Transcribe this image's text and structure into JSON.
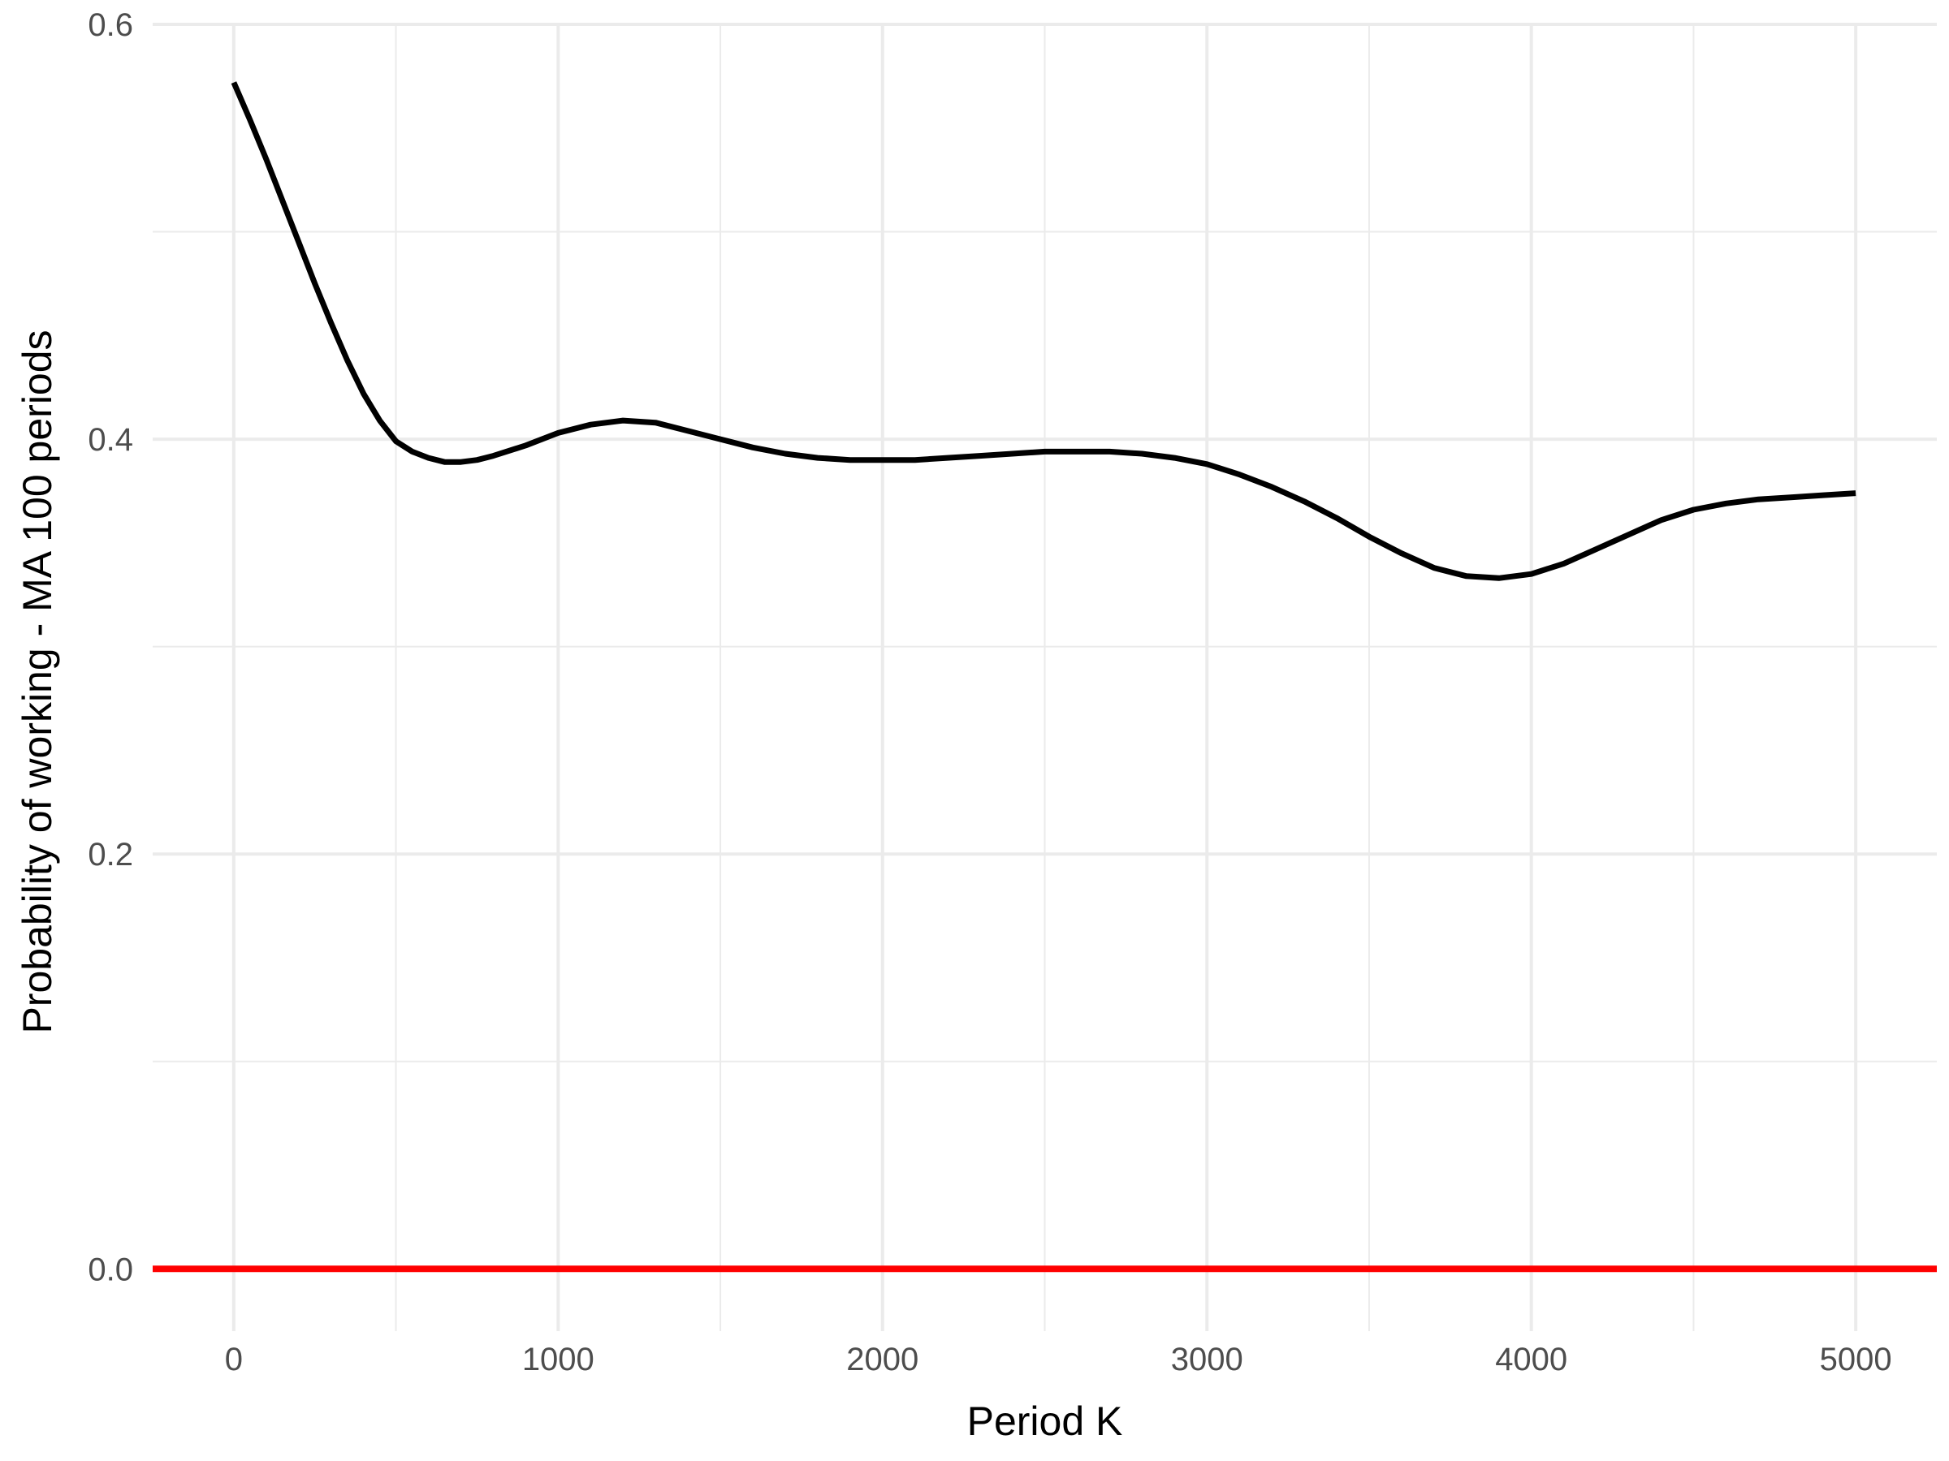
{
  "chart_data": {
    "type": "line",
    "title": "",
    "xlabel": "Period K",
    "ylabel": "Probability of working - MA 100 periods",
    "xlim": [
      -250,
      5250
    ],
    "ylim": [
      -0.03,
      0.6
    ],
    "x_ticks": [
      0,
      1000,
      2000,
      3000,
      4000,
      5000
    ],
    "x_tick_labels": [
      "0",
      "1000",
      "2000",
      "3000",
      "4000",
      "5000"
    ],
    "x_minor_ticks": [
      500,
      1500,
      2500,
      3500,
      4500
    ],
    "y_ticks": [
      0.0,
      0.2,
      0.4,
      0.6
    ],
    "y_tick_labels": [
      "0.0",
      "0.2",
      "0.4",
      "0.6"
    ],
    "y_minor_ticks": [
      0.1,
      0.3,
      0.5
    ],
    "grid": true,
    "legend": "none",
    "series": [
      {
        "color": "#000000",
        "x": [
          0,
          50,
          100,
          150,
          200,
          250,
          300,
          350,
          400,
          450,
          500,
          550,
          600,
          650,
          700,
          750,
          800,
          900,
          1000,
          1100,
          1200,
          1300,
          1400,
          1500,
          1600,
          1700,
          1800,
          1900,
          2000,
          2100,
          2200,
          2300,
          2400,
          2500,
          2600,
          2700,
          2800,
          2900,
          3000,
          3100,
          3200,
          3300,
          3400,
          3500,
          3600,
          3700,
          3800,
          3900,
          4000,
          4100,
          4200,
          4300,
          4400,
          4500,
          4600,
          4700,
          4800,
          4900,
          5000
        ],
        "values": [
          0.572,
          0.554,
          0.535,
          0.515,
          0.495,
          0.475,
          0.456,
          0.438,
          0.422,
          0.409,
          0.399,
          0.394,
          0.391,
          0.389,
          0.389,
          0.39,
          0.392,
          0.397,
          0.403,
          0.407,
          0.409,
          0.408,
          0.404,
          0.4,
          0.396,
          0.393,
          0.391,
          0.39,
          0.39,
          0.39,
          0.391,
          0.392,
          0.393,
          0.394,
          0.394,
          0.394,
          0.393,
          0.391,
          0.388,
          0.383,
          0.377,
          0.37,
          0.362,
          0.353,
          0.345,
          0.338,
          0.334,
          0.333,
          0.335,
          0.34,
          0.347,
          0.354,
          0.361,
          0.366,
          0.369,
          0.371,
          0.372,
          0.373,
          0.374
        ]
      },
      {
        "color": "#ff0000",
        "x": [
          -250,
          5250
        ],
        "values": [
          0,
          0
        ]
      }
    ]
  }
}
